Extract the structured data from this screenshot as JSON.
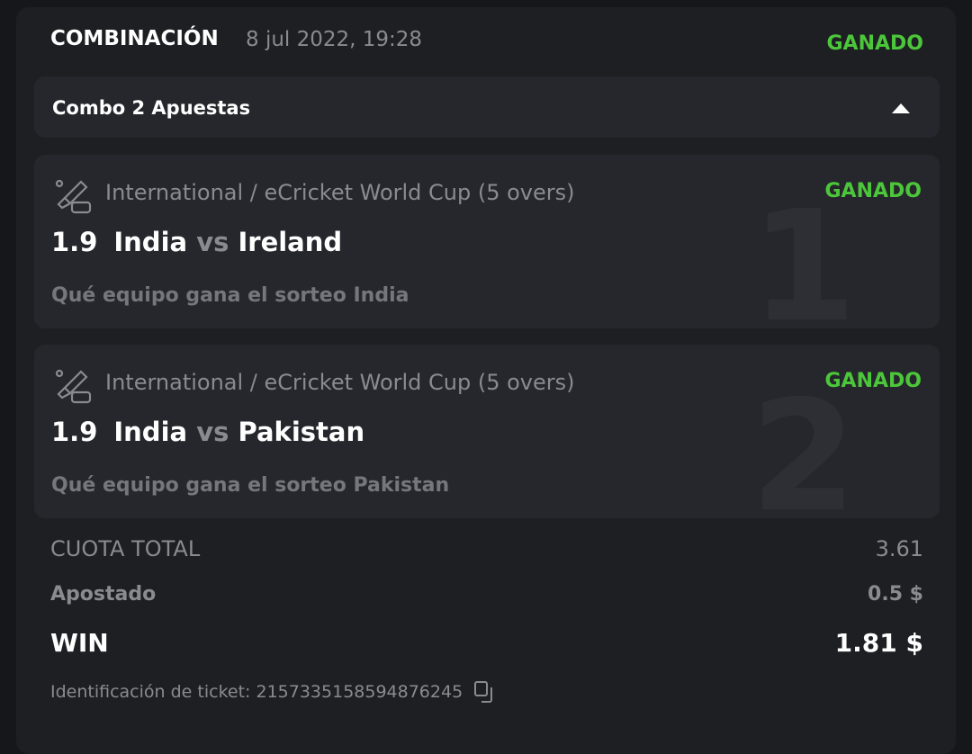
{
  "header": {
    "title": "COMBINACIÓN",
    "date": "8 jul 2022, 19:28",
    "status": "GANADO"
  },
  "combo": {
    "label": "Combo 2 Apuestas",
    "toggle_icon": "caret-up-icon"
  },
  "bets": [
    {
      "number": "1",
      "league": "International / eCricket World Cup (5 overs)",
      "odds": "1.9",
      "home": "India",
      "vs": "vs",
      "away": "Ireland",
      "pick": "Qué equipo gana el sorteo India",
      "status": "GANADO",
      "icon": "ecricket-icon"
    },
    {
      "number": "2",
      "league": "International / eCricket World Cup (5 overs)",
      "odds": "1.9",
      "home": "India",
      "vs": "vs",
      "away": "Pakistan",
      "pick": "Qué equipo gana el sorteo Pakistan",
      "status": "GANADO",
      "icon": "ecricket-icon"
    }
  ],
  "summary": {
    "total_odds_label": "CUOTA TOTAL",
    "total_odds": "3.61",
    "staked_label": "Apostado",
    "staked": "0.5 $",
    "win_label": "WIN",
    "win": "1.81 $"
  },
  "ticket": {
    "text": "Identificación de ticket: 2157335158594876245",
    "copy_icon": "copy-icon"
  },
  "colors": {
    "won": "#4cc63a"
  }
}
